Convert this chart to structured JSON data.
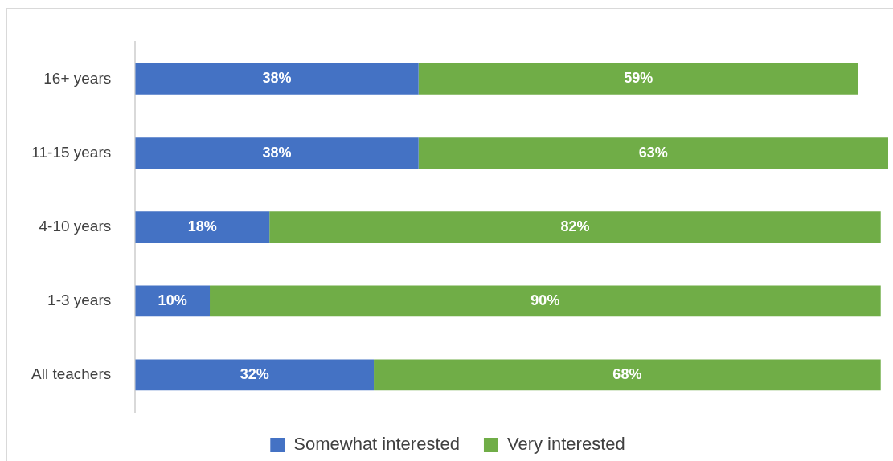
{
  "chart_data": {
    "type": "bar",
    "orientation": "horizontal",
    "stacked": true,
    "legend": "bottom",
    "categories": [
      "16+ years",
      "11-15 years",
      "4-10 years",
      "1-3 years",
      "All teachers"
    ],
    "series": [
      {
        "name": "Somewhat interested",
        "color": "#4472c4",
        "values": [
          38,
          38,
          18,
          10,
          32
        ],
        "value_labels": [
          "38%",
          "38%",
          "18%",
          "10%",
          "32%"
        ]
      },
      {
        "name": "Very interested",
        "color": "#70ad47",
        "values": [
          59,
          63,
          82,
          90,
          68
        ],
        "value_labels": [
          "59%",
          "63%",
          "82%",
          "90%",
          "68%"
        ]
      }
    ]
  }
}
